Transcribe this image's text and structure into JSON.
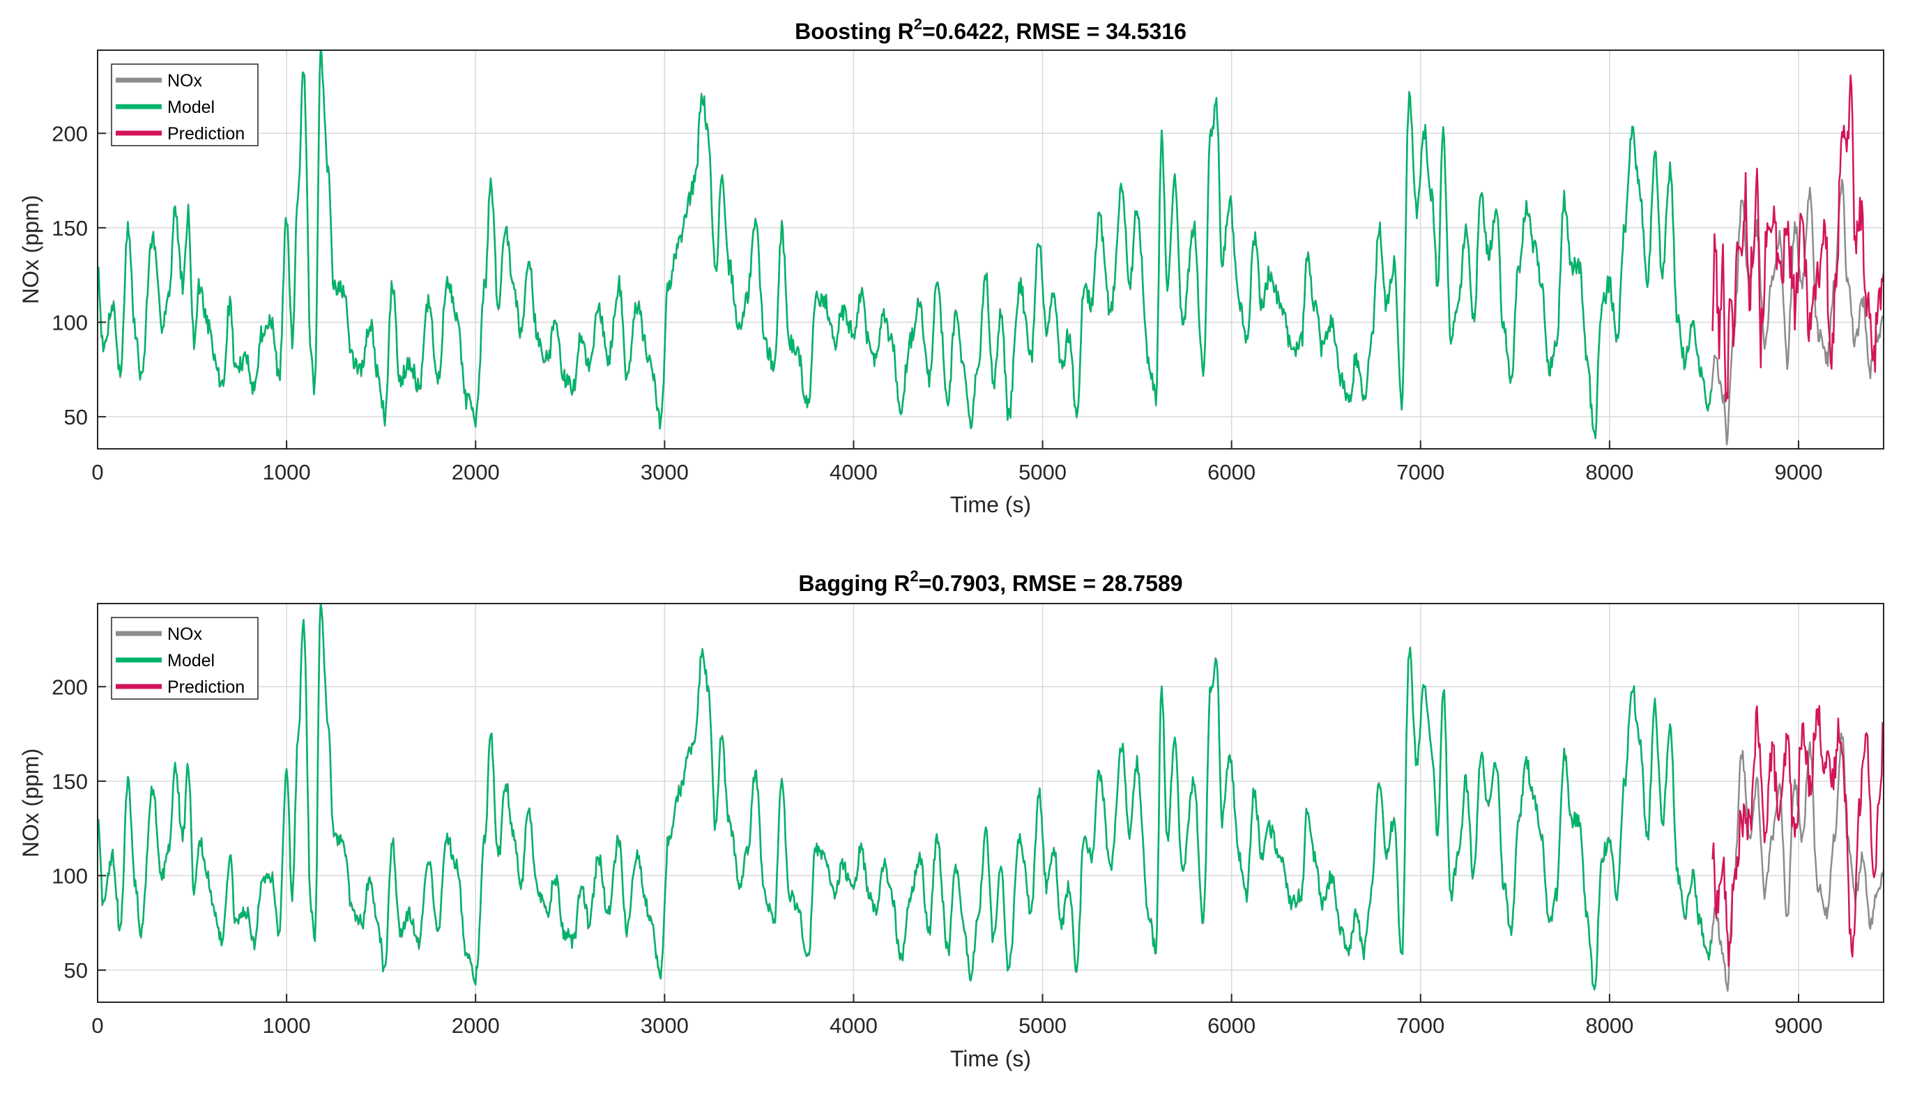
{
  "colors": {
    "nox": "#8c8c8c",
    "model": "#00b36b",
    "prediction": "#d4145a",
    "grid": "#d9d9d9",
    "axis": "#262626"
  },
  "chart_data": [
    {
      "type": "line",
      "title_prefix": "Boosting R",
      "title_sup": "2",
      "title_suffix": "=0.6422, RMSE = 34.5316",
      "xlabel": "Time (s)",
      "ylabel": "NOx (ppm)",
      "xlim": [
        0,
        9450
      ],
      "ylim": [
        33,
        244
      ],
      "xticks": [
        0,
        1000,
        2000,
        3000,
        4000,
        5000,
        6000,
        7000,
        8000,
        9000
      ],
      "xtick_labels": [
        "0",
        "1000",
        "2000",
        "3000",
        "4000",
        "5000",
        "6000",
        "7000",
        "8000",
        "9000"
      ],
      "yticks": [
        50,
        100,
        150,
        200
      ],
      "ytick_labels": [
        "50",
        "100",
        "150",
        "200"
      ],
      "grid": true,
      "legend": {
        "position": "top-left",
        "entries": [
          "NOx",
          "Model",
          "Prediction"
        ]
      },
      "split_time": 8540,
      "nox_knots": [
        [
          0,
          130
        ],
        [
          30,
          85
        ],
        [
          80,
          110
        ],
        [
          120,
          72
        ],
        [
          160,
          150
        ],
        [
          200,
          95
        ],
        [
          230,
          70
        ],
        [
          290,
          145
        ],
        [
          340,
          100
        ],
        [
          380,
          115
        ],
        [
          410,
          160
        ],
        [
          450,
          120
        ],
        [
          480,
          158
        ],
        [
          510,
          90
        ],
        [
          540,
          120
        ],
        [
          580,
          100
        ],
        [
          620,
          80
        ],
        [
          660,
          65
        ],
        [
          700,
          110
        ],
        [
          730,
          75
        ],
        [
          790,
          80
        ],
        [
          830,
          65
        ],
        [
          870,
          95
        ],
        [
          920,
          100
        ],
        [
          960,
          70
        ],
        [
          1000,
          155
        ],
        [
          1030,
          90
        ],
        [
          1060,
          170
        ],
        [
          1090,
          235
        ],
        [
          1130,
          80
        ],
        [
          1150,
          65
        ],
        [
          1180,
          240
        ],
        [
          1220,
          180
        ],
        [
          1250,
          120
        ],
        [
          1300,
          117
        ],
        [
          1350,
          80
        ],
        [
          1400,
          75
        ],
        [
          1440,
          100
        ],
        [
          1480,
          75
        ],
        [
          1520,
          50
        ],
        [
          1560,
          120
        ],
        [
          1600,
          70
        ],
        [
          1650,
          80
        ],
        [
          1700,
          65
        ],
        [
          1750,
          110
        ],
        [
          1800,
          70
        ],
        [
          1850,
          120
        ],
        [
          1900,
          105
        ],
        [
          1950,
          60
        ],
        [
          2000,
          47
        ],
        [
          2050,
          120
        ],
        [
          2080,
          175
        ],
        [
          2120,
          110
        ],
        [
          2160,
          150
        ],
        [
          2200,
          120
        ],
        [
          2240,
          95
        ],
        [
          2280,
          135
        ],
        [
          2330,
          90
        ],
        [
          2380,
          80
        ],
        [
          2420,
          100
        ],
        [
          2470,
          70
        ],
        [
          2520,
          65
        ],
        [
          2560,
          95
        ],
        [
          2600,
          75
        ],
        [
          2650,
          110
        ],
        [
          2700,
          80
        ],
        [
          2760,
          120
        ],
        [
          2800,
          70
        ],
        [
          2850,
          110
        ],
        [
          2920,
          80
        ],
        [
          2980,
          47
        ],
        [
          3020,
          120
        ],
        [
          3080,
          145
        ],
        [
          3130,
          165
        ],
        [
          3160,
          175
        ],
        [
          3200,
          220
        ],
        [
          3230,
          200
        ],
        [
          3270,
          125
        ],
        [
          3300,
          175
        ],
        [
          3340,
          130
        ],
        [
          3400,
          95
        ],
        [
          3440,
          115
        ],
        [
          3480,
          155
        ],
        [
          3530,
          90
        ],
        [
          3580,
          75
        ],
        [
          3620,
          150
        ],
        [
          3660,
          90
        ],
        [
          3700,
          85
        ],
        [
          3760,
          55
        ],
        [
          3800,
          115
        ],
        [
          3850,
          110
        ],
        [
          3900,
          90
        ],
        [
          3940,
          105
        ],
        [
          4000,
          95
        ],
        [
          4040,
          115
        ],
        [
          4080,
          90
        ],
        [
          4120,
          80
        ],
        [
          4160,
          105
        ],
        [
          4200,
          90
        ],
        [
          4250,
          55
        ],
        [
          4300,
          90
        ],
        [
          4350,
          110
        ],
        [
          4400,
          70
        ],
        [
          4440,
          120
        ],
        [
          4500,
          60
        ],
        [
          4540,
          105
        ],
        [
          4580,
          75
        ],
        [
          4620,
          45
        ],
        [
          4660,
          80
        ],
        [
          4700,
          125
        ],
        [
          4740,
          65
        ],
        [
          4780,
          105
        ],
        [
          4820,
          50
        ],
        [
          4880,
          120
        ],
        [
          4940,
          80
        ],
        [
          4980,
          145
        ],
        [
          5020,
          95
        ],
        [
          5060,
          115
        ],
        [
          5100,
          75
        ],
        [
          5140,
          95
        ],
        [
          5180,
          50
        ],
        [
          5220,
          120
        ],
        [
          5260,
          110
        ],
        [
          5300,
          155
        ],
        [
          5360,
          105
        ],
        [
          5420,
          170
        ],
        [
          5460,
          120
        ],
        [
          5500,
          160
        ],
        [
          5560,
          80
        ],
        [
          5600,
          60
        ],
        [
          5630,
          200
        ],
        [
          5660,
          120
        ],
        [
          5700,
          175
        ],
        [
          5740,
          100
        ],
        [
          5800,
          150
        ],
        [
          5850,
          75
        ],
        [
          5890,
          200
        ],
        [
          5920,
          215
        ],
        [
          5950,
          130
        ],
        [
          5990,
          165
        ],
        [
          6040,
          110
        ],
        [
          6080,
          90
        ],
        [
          6120,
          145
        ],
        [
          6160,
          110
        ],
        [
          6200,
          125
        ],
        [
          6260,
          110
        ],
        [
          6320,
          85
        ],
        [
          6370,
          90
        ],
        [
          6400,
          135
        ],
        [
          6440,
          110
        ],
        [
          6480,
          85
        ],
        [
          6530,
          100
        ],
        [
          6580,
          70
        ],
        [
          6620,
          60
        ],
        [
          6660,
          80
        ],
        [
          6700,
          60
        ],
        [
          6740,
          90
        ],
        [
          6780,
          150
        ],
        [
          6820,
          110
        ],
        [
          6860,
          130
        ],
        [
          6900,
          55
        ],
        [
          6940,
          220
        ],
        [
          6980,
          160
        ],
        [
          7020,
          200
        ],
        [
          7060,
          165
        ],
        [
          7090,
          120
        ],
        [
          7120,
          200
        ],
        [
          7160,
          90
        ],
        [
          7200,
          110
        ],
        [
          7240,
          150
        ],
        [
          7280,
          100
        ],
        [
          7320,
          165
        ],
        [
          7360,
          135
        ],
        [
          7400,
          160
        ],
        [
          7440,
          95
        ],
        [
          7480,
          70
        ],
        [
          7520,
          130
        ],
        [
          7560,
          160
        ],
        [
          7600,
          140
        ],
        [
          7640,
          120
        ],
        [
          7680,
          75
        ],
        [
          7720,
          90
        ],
        [
          7760,
          165
        ],
        [
          7800,
          130
        ],
        [
          7840,
          130
        ],
        [
          7880,
          80
        ],
        [
          7920,
          40
        ],
        [
          7960,
          110
        ],
        [
          8000,
          120
        ],
        [
          8040,
          90
        ],
        [
          8080,
          150
        ],
        [
          8120,
          200
        ],
        [
          8160,
          170
        ],
        [
          8200,
          120
        ],
        [
          8240,
          190
        ],
        [
          8280,
          125
        ],
        [
          8320,
          180
        ],
        [
          8360,
          100
        ],
        [
          8400,
          80
        ],
        [
          8440,
          100
        ],
        [
          8480,
          75
        ],
        [
          8520,
          55
        ],
        [
          8560,
          80
        ],
        [
          8600,
          60
        ],
        [
          8620,
          40
        ],
        [
          8660,
          100
        ],
        [
          8700,
          165
        ],
        [
          8740,
          120
        ],
        [
          8780,
          150
        ],
        [
          8820,
          90
        ],
        [
          8860,
          120
        ],
        [
          8900,
          145
        ],
        [
          8940,
          80
        ],
        [
          8980,
          150
        ],
        [
          9020,
          120
        ],
        [
          9060,
          170
        ],
        [
          9100,
          95
        ],
        [
          9150,
          80
        ],
        [
          9190,
          120
        ],
        [
          9230,
          175
        ],
        [
          9260,
          120
        ],
        [
          9300,
          90
        ],
        [
          9340,
          110
        ],
        [
          9380,
          75
        ],
        [
          9420,
          95
        ],
        [
          9450,
          100
        ]
      ],
      "pred_knots": [
        [
          8540,
          95
        ],
        [
          8560,
          140
        ],
        [
          8580,
          90
        ],
        [
          8600,
          130
        ],
        [
          8620,
          60
        ],
        [
          8640,
          120
        ],
        [
          8660,
          95
        ],
        [
          8680,
          150
        ],
        [
          8700,
          130
        ],
        [
          8720,
          170
        ],
        [
          8740,
          110
        ],
        [
          8760,
          145
        ],
        [
          8780,
          185
        ],
        [
          8800,
          90
        ],
        [
          8830,
          140
        ],
        [
          8860,
          160
        ],
        [
          8900,
          120
        ],
        [
          8940,
          145
        ],
        [
          8980,
          110
        ],
        [
          9020,
          150
        ],
        [
          9060,
          100
        ],
        [
          9100,
          125
        ],
        [
          9140,
          150
        ],
        [
          9170,
          80
        ],
        [
          9200,
          115
        ],
        [
          9230,
          210
        ],
        [
          9260,
          195
        ],
        [
          9280,
          230
        ],
        [
          9300,
          135
        ],
        [
          9330,
          160
        ],
        [
          9360,
          110
        ],
        [
          9400,
          85
        ],
        [
          9430,
          120
        ],
        [
          9450,
          115
        ]
      ],
      "pred_noise": 14,
      "noise": 5
    },
    {
      "type": "line",
      "title_prefix": "Bagging R",
      "title_sup": "2",
      "title_suffix": "=0.7903, RMSE = 28.7589",
      "xlabel": "Time (s)",
      "ylabel": "NOx (ppm)",
      "xlim": [
        0,
        9450
      ],
      "ylim": [
        33,
        244
      ],
      "xticks": [
        0,
        1000,
        2000,
        3000,
        4000,
        5000,
        6000,
        7000,
        8000,
        9000
      ],
      "xtick_labels": [
        "0",
        "1000",
        "2000",
        "3000",
        "4000",
        "5000",
        "6000",
        "7000",
        "8000",
        "9000"
      ],
      "yticks": [
        50,
        100,
        150,
        200
      ],
      "ytick_labels": [
        "50",
        "100",
        "150",
        "200"
      ],
      "grid": true,
      "legend": {
        "position": "top-left",
        "entries": [
          "NOx",
          "Model",
          "Prediction"
        ]
      },
      "split_time": 8540,
      "pred_knots": [
        [
          8540,
          115
        ],
        [
          8570,
          85
        ],
        [
          8600,
          105
        ],
        [
          8630,
          60
        ],
        [
          8660,
          95
        ],
        [
          8700,
          130
        ],
        [
          8740,
          125
        ],
        [
          8780,
          180
        ],
        [
          8820,
          125
        ],
        [
          8860,
          165
        ],
        [
          8900,
          130
        ],
        [
          8940,
          170
        ],
        [
          8980,
          120
        ],
        [
          9020,
          175
        ],
        [
          9060,
          150
        ],
        [
          9100,
          185
        ],
        [
          9140,
          160
        ],
        [
          9180,
          150
        ],
        [
          9220,
          180
        ],
        [
          9250,
          140
        ],
        [
          9270,
          75
        ],
        [
          9290,
          65
        ],
        [
          9320,
          140
        ],
        [
          9360,
          170
        ],
        [
          9400,
          100
        ],
        [
          9430,
          140
        ],
        [
          9450,
          180
        ]
      ],
      "pred_noise": 10,
      "noise": 4
    }
  ]
}
